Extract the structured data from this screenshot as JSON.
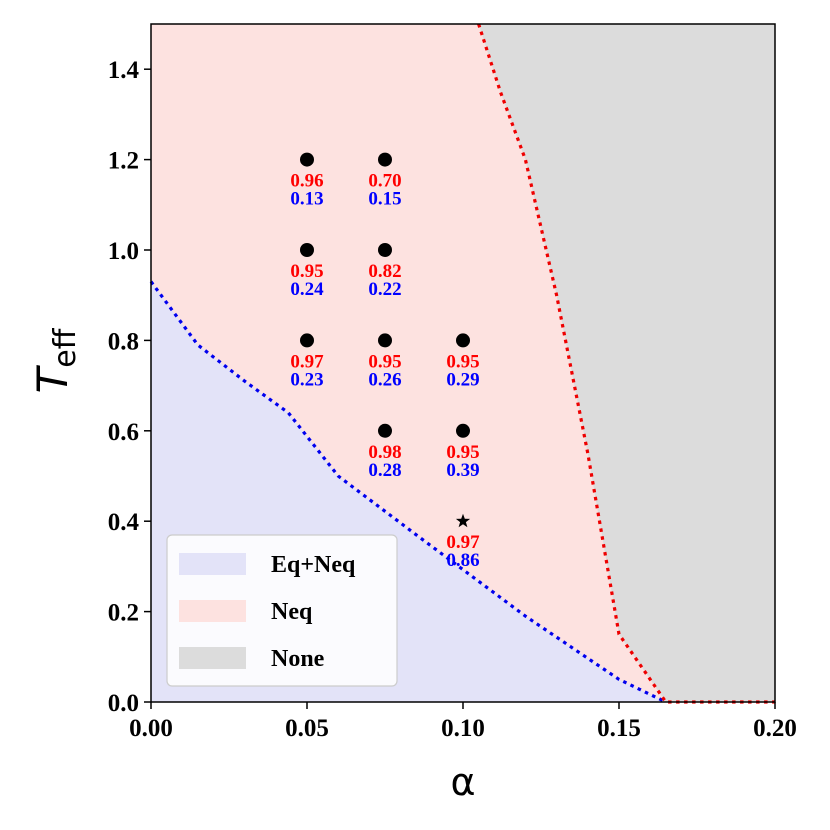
{
  "chart_data": {
    "type": "scatter",
    "xlabel": "α",
    "ylabel_main": "T",
    "ylabel_sub": "eff",
    "xlim": [
      0.0,
      0.2
    ],
    "ylim": [
      0.0,
      1.5
    ],
    "xticks": [
      0.0,
      0.05,
      0.1,
      0.15,
      0.2
    ],
    "xtick_labels": [
      "0.00",
      "0.05",
      "0.10",
      "0.15",
      "0.20"
    ],
    "yticks": [
      0.0,
      0.2,
      0.4,
      0.6,
      0.8,
      1.0,
      1.2,
      1.4
    ],
    "ytick_labels": [
      "0.0",
      "0.2",
      "0.4",
      "0.6",
      "0.8",
      "1.0",
      "1.2",
      "1.4"
    ],
    "grid": false,
    "colors": {
      "eq_neq_fill": "#e3e3f8",
      "neq_fill": "#fde2e0",
      "none_fill": "#dcdcdc",
      "blue_line": "#0000ee",
      "red_line": "#ee0000",
      "red_text": "#ff0000",
      "blue_text": "#0000ff"
    },
    "blue_boundary": [
      [
        0.0,
        0.93
      ],
      [
        0.015,
        0.79
      ],
      [
        0.03,
        0.71
      ],
      [
        0.044,
        0.64
      ],
      [
        0.06,
        0.5
      ],
      [
        0.085,
        0.37
      ],
      [
        0.12,
        0.19
      ],
      [
        0.15,
        0.05
      ],
      [
        0.165,
        0.0
      ]
    ],
    "red_boundary": [
      [
        0.105,
        1.5
      ],
      [
        0.112,
        1.35
      ],
      [
        0.12,
        1.2
      ],
      [
        0.13,
        0.9
      ],
      [
        0.14,
        0.55
      ],
      [
        0.15,
        0.15
      ],
      [
        0.165,
        0.0
      ],
      [
        0.2,
        0.0
      ]
    ],
    "points": [
      {
        "x": 0.05,
        "y": 1.2,
        "marker": "circle",
        "red": "0.96",
        "blue": "0.13"
      },
      {
        "x": 0.075,
        "y": 1.2,
        "marker": "circle",
        "red": "0.70",
        "blue": "0.15"
      },
      {
        "x": 0.05,
        "y": 1.0,
        "marker": "circle",
        "red": "0.95",
        "blue": "0.24"
      },
      {
        "x": 0.075,
        "y": 1.0,
        "marker": "circle",
        "red": "0.82",
        "blue": "0.22"
      },
      {
        "x": 0.05,
        "y": 0.8,
        "marker": "circle",
        "red": "0.97",
        "blue": "0.23"
      },
      {
        "x": 0.075,
        "y": 0.8,
        "marker": "circle",
        "red": "0.95",
        "blue": "0.26"
      },
      {
        "x": 0.1,
        "y": 0.8,
        "marker": "circle",
        "red": "0.95",
        "blue": "0.29"
      },
      {
        "x": 0.075,
        "y": 0.6,
        "marker": "circle",
        "red": "0.98",
        "blue": "0.28"
      },
      {
        "x": 0.1,
        "y": 0.6,
        "marker": "circle",
        "red": "0.95",
        "blue": "0.39"
      },
      {
        "x": 0.1,
        "y": 0.4,
        "marker": "star",
        "red": "0.97",
        "blue": "0.86"
      }
    ],
    "legend": {
      "position": "lower-left",
      "entries": [
        {
          "label": "Eq+Neq",
          "color": "#e3e3f8"
        },
        {
          "label": "Neq",
          "color": "#fde2e0"
        },
        {
          "label": "None",
          "color": "#dcdcdc"
        }
      ]
    }
  }
}
